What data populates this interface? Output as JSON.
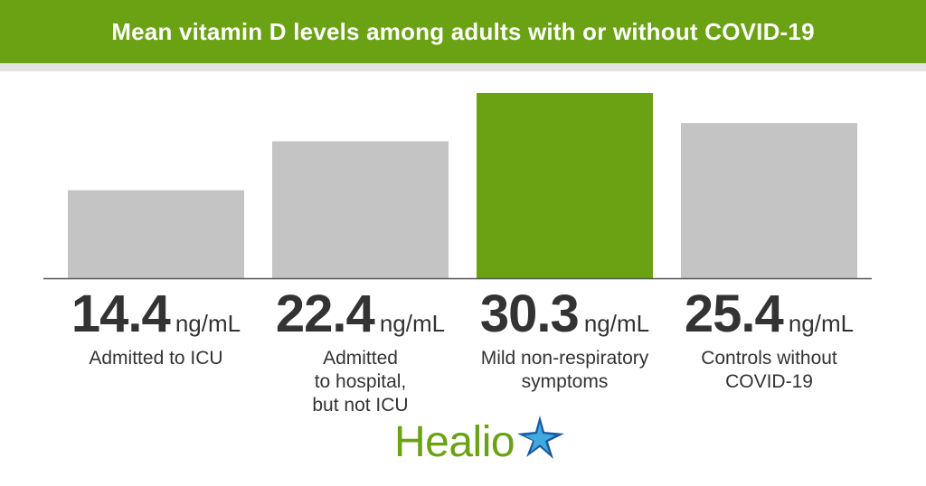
{
  "chart_data": {
    "type": "bar",
    "title": "Mean vitamin D levels among adults with or without COVID-19",
    "categories": [
      "Admitted to ICU",
      "Admitted\nto hospital,\nbut not ICU",
      "Mild non-respiratory\nsymptoms",
      "Controls without\nCOVID-19"
    ],
    "values": [
      14.4,
      22.4,
      30.3,
      25.4
    ],
    "value_labels": [
      "14.4",
      "22.4",
      "30.3",
      "25.4"
    ],
    "unit": "ng/mL",
    "highlight_index": 2,
    "colors": {
      "bar": "#c4c4c4",
      "highlight": "#6aa214",
      "banner": "#6aa214",
      "baseline": "#555555"
    },
    "ylim": [
      0,
      30.3
    ],
    "grid": false,
    "legend": "none"
  },
  "branding": {
    "logo_text": "Healio",
    "logo_icon": "star-icon",
    "colors": {
      "green": "#6aa214",
      "blue": "#1c5aa0"
    }
  }
}
